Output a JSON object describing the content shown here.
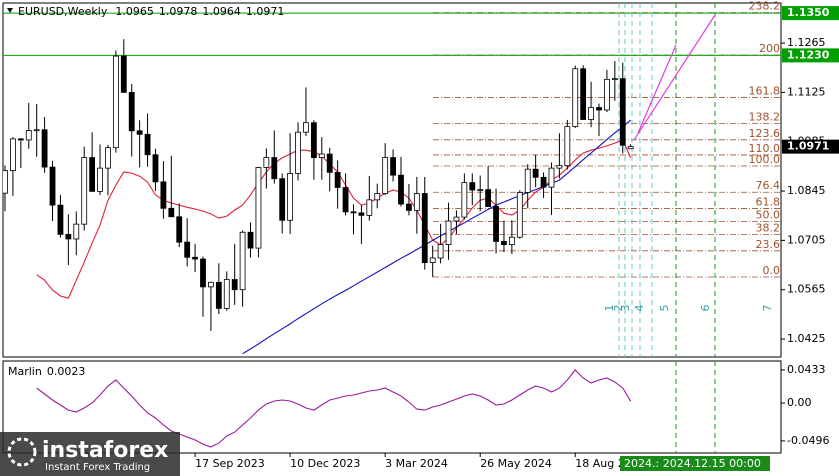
{
  "chart_data": {
    "type": "candlestick",
    "symbol": "EURUSD,Weekly",
    "categories": [
      null,
      null,
      null,
      null,
      null,
      null,
      null,
      null,
      null,
      null,
      null,
      null,
      null,
      null,
      null,
      null,
      null,
      null,
      null,
      null,
      null,
      null,
      null,
      null,
      "17 Sep 2023",
      null,
      null,
      null,
      null,
      null,
      null,
      null,
      null,
      null,
      null,
      null,
      "10 Dec 2023",
      null,
      null,
      null,
      null,
      null,
      null,
      null,
      null,
      null,
      null,
      null,
      "3 Mar 2024",
      null,
      null,
      null,
      null,
      null,
      null,
      null,
      null,
      null,
      null,
      null,
      "26 May 2024",
      null,
      null,
      null,
      null,
      null,
      null,
      null,
      null,
      null,
      null,
      null,
      "18 Aug 2024",
      null,
      null,
      null,
      null,
      null,
      null,
      null
    ],
    "candles": {
      "open": [
        1.0839,
        1.0903,
        1.0993,
        1.099,
        1.1017,
        1.1019,
        1.0913,
        1.0805,
        1.0722,
        1.0709,
        1.0751,
        1.094,
        1.0844,
        1.091,
        1.0968,
        1.1228,
        1.1125,
        1.1016,
        1.1006,
        1.0948,
        1.0871,
        1.0796,
        1.0772,
        1.07,
        1.0657,
        1.0652,
        1.0573,
        1.0586,
        1.0512,
        1.0594,
        1.0565,
        1.0728,
        1.0683,
        1.0912,
        1.094,
        1.088,
        1.0762,
        1.0895,
        1.1012,
        1.1039,
        1.094,
        1.095,
        1.0898,
        1.0855,
        1.0786,
        1.0783,
        1.0776,
        1.082,
        1.0838,
        1.094,
        1.089,
        1.0808,
        1.079,
        1.0838,
        1.0642,
        1.0655,
        1.0693,
        1.076,
        1.0771,
        1.0869,
        1.0848,
        1.0849,
        1.0801,
        1.0702,
        1.0693,
        1.0714,
        1.0841,
        1.0907,
        1.0884,
        1.0856,
        1.091,
        1.0917,
        1.1028,
        1.1192,
        1.1048,
        1.1082,
        1.1075,
        1.1162,
        1.1164,
        1.0965
      ],
      "high": [
        1.0918,
        1.0998,
        1.0995,
        1.1095,
        1.1092,
        1.1055,
        1.0931,
        1.0834,
        1.0779,
        1.0787,
        1.0971,
        1.1012,
        1.0977,
        1.0976,
        1.1244,
        1.1276,
        1.1149,
        1.1046,
        1.1065,
        1.0965,
        1.093,
        1.0945,
        1.081,
        1.0768,
        1.0695,
        1.0659,
        1.0588,
        1.064,
        1.0617,
        1.0695,
        1.0733,
        1.0756,
        1.0914,
        1.0966,
        1.1017,
        1.0895,
        1.1009,
        1.104,
        1.1139,
        1.1046,
        1.0998,
        1.0968,
        1.0932,
        1.0895,
        1.0807,
        1.0805,
        1.0888,
        1.0866,
        1.0981,
        1.0963,
        1.0942,
        1.0865,
        1.0885,
        1.0885,
        1.069,
        1.0752,
        1.0812,
        1.079,
        1.0895,
        1.0895,
        1.0889,
        1.0916,
        1.0852,
        1.0761,
        1.0762,
        1.0847,
        1.0921,
        1.0948,
        1.0898,
        1.0926,
        1.1009,
        1.1047,
        1.1201,
        1.1202,
        1.1155,
        1.1093,
        1.1189,
        1.1214,
        1.1209,
        1.0978
      ],
      "low": [
        1.0788,
        1.0831,
        1.091,
        1.0965,
        1.0942,
        1.0897,
        1.076,
        1.0713,
        1.0635,
        1.0663,
        1.0733,
        1.0844,
        1.0834,
        1.0833,
        1.0954,
        1.1124,
        1.0943,
        1.0912,
        1.0914,
        1.0845,
        1.0766,
        1.0771,
        1.0686,
        1.0631,
        1.0615,
        1.0488,
        1.0448,
        1.0496,
        1.0505,
        1.0522,
        1.0517,
        1.0656,
        1.0657,
        1.0852,
        1.0866,
        1.0724,
        1.0723,
        1.0875,
        1.1001,
        1.0877,
        1.0877,
        1.0844,
        1.0795,
        1.0776,
        1.0722,
        1.0695,
        1.0761,
        1.0796,
        1.0834,
        1.0872,
        1.0801,
        1.0776,
        1.0724,
        1.0622,
        1.0601,
        1.064,
        1.065,
        1.0723,
        1.0764,
        1.0805,
        1.0788,
        1.08,
        1.0668,
        1.0672,
        1.0666,
        1.071,
        1.0797,
        1.0856,
        1.0825,
        1.0777,
        1.0881,
        1.0906,
        1.1024,
        1.1047,
        1.1026,
        1.1001,
        1.1069,
        1.1101,
        1.0952,
        1.0964
      ],
      "close": [
        1.0903,
        1.0993,
        1.099,
        1.1017,
        1.1019,
        1.0913,
        1.0805,
        1.0722,
        1.0709,
        1.0751,
        1.094,
        1.0844,
        1.091,
        1.0968,
        1.1228,
        1.1125,
        1.1016,
        1.1006,
        1.0948,
        1.0871,
        1.0796,
        1.0772,
        1.07,
        1.0657,
        1.0652,
        1.0573,
        1.0586,
        1.0512,
        1.0594,
        1.0565,
        1.0728,
        1.0683,
        1.0912,
        1.094,
        1.088,
        1.0762,
        1.0895,
        1.1012,
        1.1039,
        1.094,
        1.095,
        1.0898,
        1.0855,
        1.0786,
        1.0783,
        1.0776,
        1.082,
        1.0838,
        1.094,
        1.089,
        1.0808,
        1.079,
        1.0838,
        1.0642,
        1.0655,
        1.0693,
        1.076,
        1.0771,
        1.0869,
        1.0848,
        1.0849,
        1.0801,
        1.0702,
        1.0693,
        1.0714,
        1.0841,
        1.0907,
        1.0884,
        1.0856,
        1.091,
        1.0917,
        1.1028,
        1.1192,
        1.1048,
        1.1082,
        1.1075,
        1.1162,
        1.1164,
        1.0975,
        1.0971
      ]
    },
    "ma_series": [
      {
        "color": "#e0203a",
        "values": [
          null,
          null,
          null,
          null,
          1.0607,
          1.0592,
          1.0564,
          1.0547,
          1.0541,
          1.0592,
          1.0643,
          1.0697,
          1.0748,
          1.0819,
          1.0862,
          1.0899,
          1.0896,
          1.0887,
          1.087,
          1.0834,
          1.0819,
          1.0811,
          1.0805,
          1.0799,
          1.0794,
          1.0788,
          1.078,
          1.0768,
          1.0774,
          1.0791,
          1.0805,
          1.0834,
          1.0868,
          1.0899,
          1.0924,
          1.0939,
          1.095,
          1.0961,
          1.0961,
          1.0956,
          1.0944,
          1.0922,
          1.0899,
          1.0862,
          1.0825,
          1.0805,
          1.0811,
          1.0825,
          1.0839,
          1.0848,
          1.0842,
          1.0825,
          1.0791,
          1.0748,
          1.0706,
          1.0692,
          1.0711,
          1.074,
          1.0768,
          1.0797,
          1.0819,
          1.0825,
          1.0805,
          1.0782,
          1.0777,
          1.0791,
          1.0819,
          1.0842,
          1.0856,
          1.0876,
          1.089,
          1.091,
          1.0933,
          1.0953,
          1.0961,
          1.0967,
          1.0973,
          1.0981,
          1.099,
          1.0939
        ]
      },
      {
        "color": "#1010c0",
        "values": [
          null,
          null,
          null,
          null,
          null,
          null,
          null,
          null,
          null,
          null,
          null,
          null,
          null,
          null,
          null,
          null,
          null,
          null,
          null,
          null,
          null,
          null,
          null,
          null,
          null,
          null,
          null,
          null,
          null,
          null,
          1.0383,
          1.0397,
          1.0411,
          1.0426,
          1.044,
          1.0454,
          1.0468,
          1.0483,
          1.0497,
          1.0511,
          1.0525,
          1.0538,
          1.0551,
          1.0563,
          1.0576,
          1.0589,
          1.0602,
          1.0615,
          1.0628,
          1.0641,
          1.0654,
          1.0666,
          1.0679,
          1.0692,
          1.0705,
          1.0718,
          1.073,
          1.0743,
          1.0755,
          1.0768,
          1.078,
          1.0793,
          1.0805,
          1.0814,
          1.0823,
          1.0832,
          1.0841,
          1.0849,
          1.0858,
          1.0867,
          1.0876,
          1.0895,
          1.0914,
          1.0934,
          1.0953,
          1.0972,
          1.0991,
          1.101,
          1.1028,
          1.1046
        ]
      }
    ],
    "ylim": [
      1.0374,
      1.1373
    ],
    "yticks": [
      1.1265,
      1.1125,
      1.0985,
      1.0845,
      1.0705,
      1.0565,
      1.0425
    ],
    "price_levels": [
      {
        "value": 1.135,
        "label": "1.1350"
      },
      {
        "value": 1.123,
        "label": "1.1230"
      }
    ],
    "level_color": "#00a000",
    "fibo": {
      "low": 1.0601,
      "high": 1.0916,
      "color": "#a0522d",
      "levels": [
        {
          "value": 238.2,
          "label": "238.2"
        },
        200,
        161.8,
        138.2,
        123.6,
        {
          "value": 110,
          "label": "110.0"
        },
        {
          "value": 100,
          "label": "100.0"
        },
        76.4,
        61.8,
        {
          "value": 50,
          "label": "50.0"
        },
        38.2,
        23.6,
        {
          "value": 0,
          "label": "0.0"
        }
      ]
    },
    "time_zones": [
      1,
      2,
      3,
      4,
      5,
      6,
      7
    ],
    "indicator": {
      "name": "Marlin",
      "color": "#9a1aa0",
      "values": [
        null,
        null,
        null,
        null,
        0.0196,
        0.0118,
        0.0039,
        -0.0026,
        -0.0092,
        -0.0118,
        -0.0065,
        0,
        0.0105,
        0.0223,
        0.0301,
        0.0196,
        0.0092,
        -0.0026,
        -0.0131,
        -0.0196,
        -0.0288,
        -0.0366,
        -0.0406,
        -0.0445,
        -0.0484,
        -0.0537,
        -0.0576,
        -0.0524,
        -0.0432,
        -0.038,
        -0.0288,
        -0.0196,
        -0.0092,
        -0.0013,
        0.0026,
        0.0039,
        0.0026,
        -0.0013,
        -0.0065,
        -0.0092,
        -0.0026,
        0.0039,
        0.0065,
        0.0092,
        0.0105,
        0.0131,
        0.0157,
        0.017,
        0.0196,
        0.0144,
        0.0092,
        0.0013,
        -0.0079,
        -0.0092,
        -0.0052,
        -0.0026,
        0.0013,
        0.0052,
        0.0092,
        0.0118,
        0.0092,
        0.0039,
        -0.0026,
        -0.0013,
        0.0039,
        0.0105,
        0.017,
        0.0223,
        0.0196,
        0.0144,
        0.0196,
        0.0301,
        0.0432,
        0.0327,
        0.0262,
        0.0301,
        0.0327,
        0.0275,
        0.0196,
        0.0023
      ],
      "ylim": [
        -0.0641,
        0.0537
      ],
      "yticks": [
        0.0433,
        {
          "value": 0,
          "label": "0.00"
        },
        -0.0496
      ]
    },
    "time_marker_label": "2024.: 2024.12.15 00:00"
  },
  "logo": {
    "name": "instaforex",
    "tagline": "Instant Forex Trading"
  }
}
